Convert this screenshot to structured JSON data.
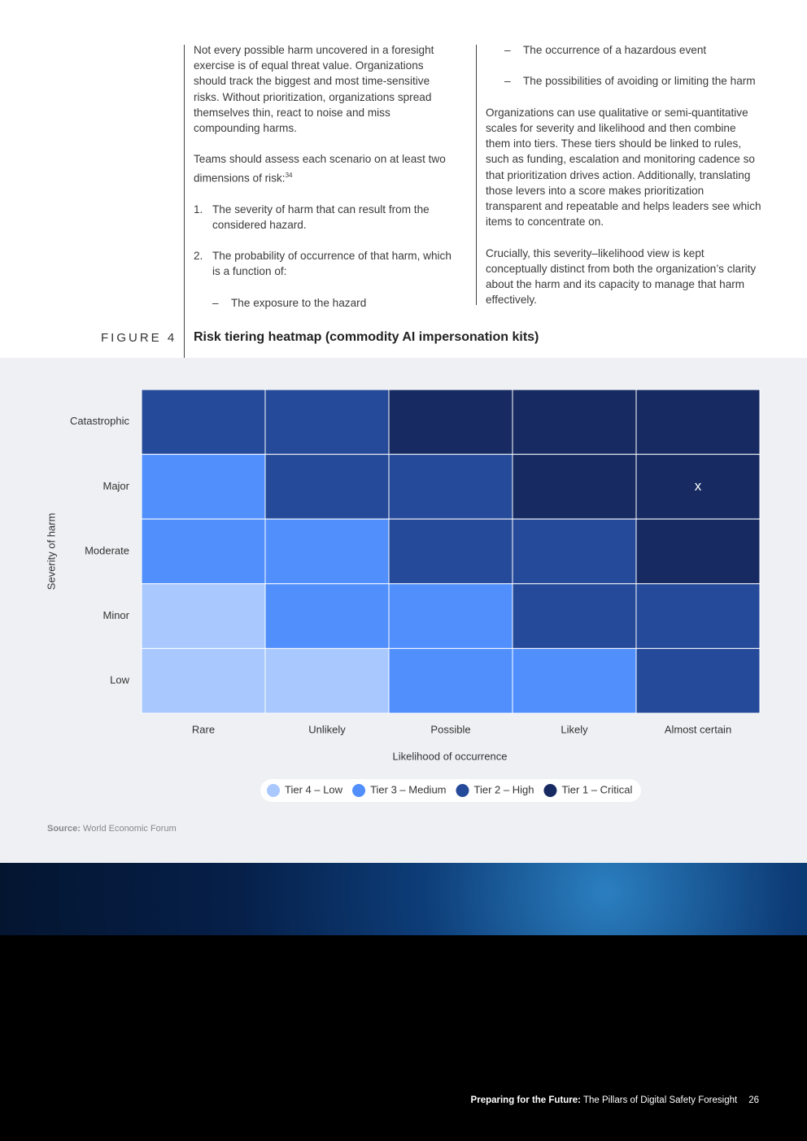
{
  "left_column": {
    "p1": "Not every possible harm uncovered in a foresight exercise is of equal threat value. Organizations should track the biggest and most time-sensitive risks. Without prioritization, organizations spread themselves thin, react to noise and miss compounding harms.",
    "p2": "Teams should assess each scenario on at least two dimensions of risk:",
    "p2_ref": "34",
    "list": [
      {
        "marker": "1.",
        "text": "The severity of harm that can result from the considered hazard."
      },
      {
        "marker": "2.",
        "text": "The probability of occurrence of that harm, which is a function of:",
        "subitems": [
          {
            "marker": "–",
            "text": "The exposure to the hazard"
          }
        ]
      }
    ]
  },
  "right_column": {
    "subitems": [
      {
        "marker": "–",
        "text": "The occurrence of a hazardous event"
      },
      {
        "marker": "–",
        "text": "The possibilities of avoiding or limiting the harm"
      }
    ],
    "paragraphs": [
      "Organizations can use qualitative or semi-quantitative scales for severity and likelihood and then combine them into tiers. These tiers should be linked to rules, such as funding, escalation and monitoring cadence so that prioritization drives action. Additionally, translating those levers into a score makes prioritization transparent and repeatable and helps leaders see which items to concentrate on.",
      "Crucially, this severity–likelihood view is kept conceptually distinct from both the organization’s clarity about the harm and its capacity to manage that harm effectively."
    ]
  },
  "figure": {
    "label": "FIGURE 4",
    "title": "Risk tiering heatmap (commodity AI impersonation kits)"
  },
  "chart_data": {
    "type": "heatmap",
    "x_categories": [
      "Rare",
      "Unlikely",
      "Possible",
      "Likely",
      "Almost certain"
    ],
    "y_categories": [
      "Catastrophic",
      "Major",
      "Moderate",
      "Minor",
      "Low"
    ],
    "values": [
      [
        2,
        2,
        1,
        1,
        1
      ],
      [
        3,
        2,
        2,
        1,
        1
      ],
      [
        3,
        3,
        2,
        2,
        1
      ],
      [
        4,
        3,
        3,
        2,
        2
      ],
      [
        4,
        4,
        3,
        3,
        2
      ]
    ],
    "tiers": [
      {
        "name": "Tier 4 – Low",
        "value": 4,
        "color": "#a9c8fd"
      },
      {
        "name": "Tier 3 – Medium",
        "value": 3,
        "color": "#508ffc"
      },
      {
        "name": "Tier 2 – High",
        "value": 2,
        "color": "#264a9a"
      },
      {
        "name": "Tier 1 – Critical",
        "value": 1,
        "color": "#172b62"
      }
    ],
    "xlabel": "Likelihood of occurrence",
    "ylabel": "Severity of harm",
    "marker": {
      "label": "x",
      "row": 1,
      "col": 4
    }
  },
  "source": {
    "label": "Source:",
    "text": "World Economic Forum"
  },
  "footer": {
    "title_bold": "Preparing for the Future:",
    "title": "The Pillars of Digital Safety Foresight",
    "page": "26"
  }
}
